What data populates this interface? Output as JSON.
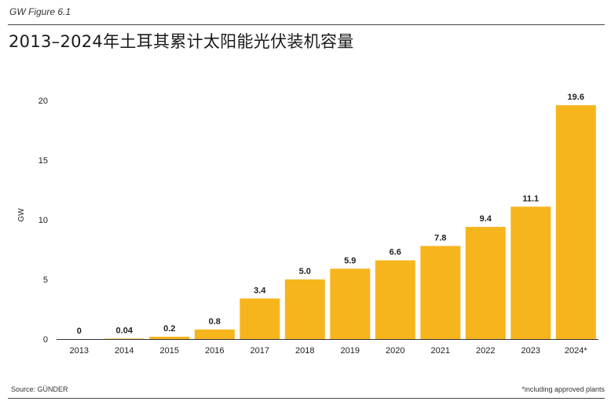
{
  "figure_label": "GW Figure 6.1",
  "title": "2013–2024年土耳其累计太阳能光伏装机容量",
  "source": "Source: GÜNDER",
  "footnote": "*including approved plants",
  "colors": {
    "bar": "#F7B51D",
    "axis": "#333333",
    "text": "#222222"
  },
  "chart_data": {
    "type": "bar",
    "categories": [
      "2013",
      "2014",
      "2015",
      "2016",
      "2017",
      "2018",
      "2019",
      "2020",
      "2021",
      "2022",
      "2023",
      "2024*"
    ],
    "values": [
      0,
      0.04,
      0.2,
      0.8,
      3.4,
      5.0,
      5.9,
      6.6,
      7.8,
      9.4,
      11.1,
      19.6
    ],
    "data_labels": [
      "0",
      "0.04",
      "0.2",
      "0.8",
      "3.4",
      "5.0",
      "5.9",
      "6.6",
      "7.8",
      "9.4",
      "11.1",
      "19.6"
    ],
    "ylabel": "GW",
    "xlabel": "",
    "yticks": [
      0,
      5,
      10,
      15,
      20
    ],
    "ylim": [
      0,
      20
    ],
    "grid": false,
    "legend": "none"
  }
}
